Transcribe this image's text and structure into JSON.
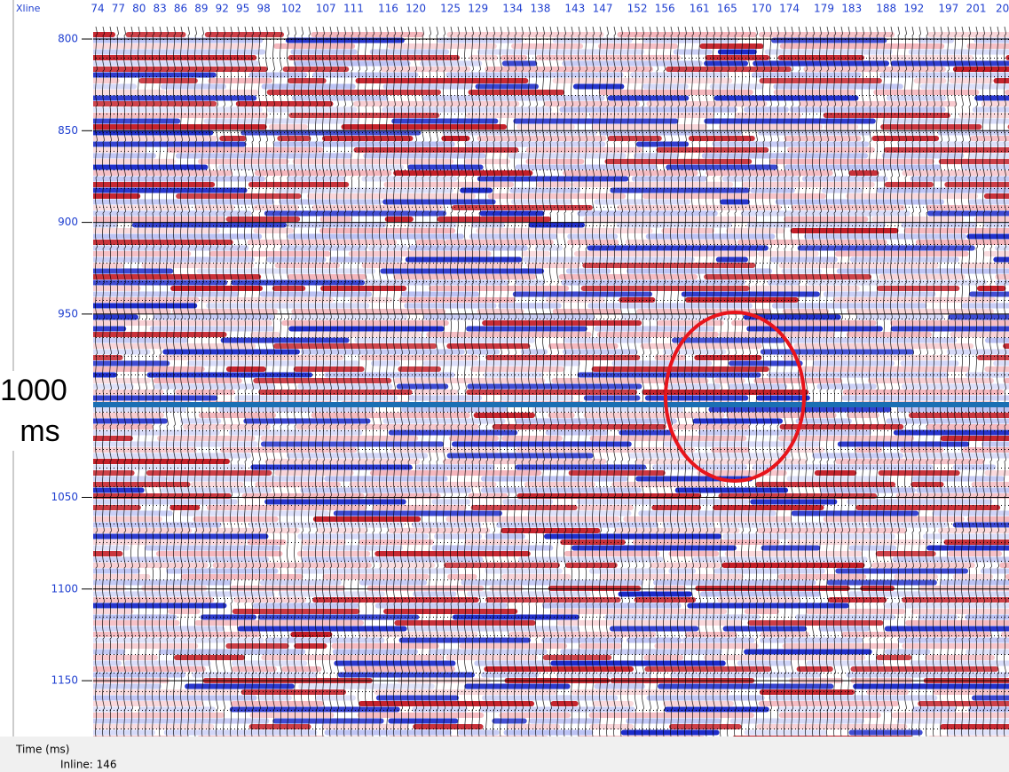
{
  "header": {
    "axis_label": "Xline",
    "xlines": [
      74,
      77,
      80,
      83,
      86,
      89,
      92,
      95,
      98,
      102,
      107,
      111,
      116,
      120,
      125,
      129,
      134,
      138,
      143,
      147,
      152,
      156,
      161,
      165,
      170,
      174,
      179,
      183,
      188,
      192,
      197,
      201
    ],
    "partial_label": "20"
  },
  "time_axis": {
    "label": "Time (ms)",
    "ticks": [
      800,
      850,
      900,
      950,
      1050,
      1100,
      1150
    ]
  },
  "annotation": {
    "time_value": "1000",
    "time_unit": "ms"
  },
  "status": {
    "inline": "Inline: 146"
  }
}
